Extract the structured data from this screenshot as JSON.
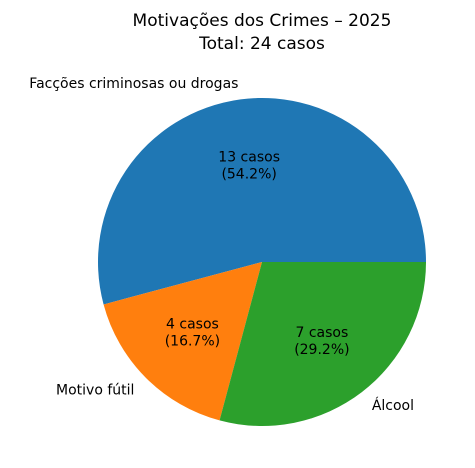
{
  "chart_data": {
    "type": "pie",
    "title": "Motivações dos Crimes – 2025",
    "subtitle": "Total: 24 casos",
    "slices": [
      {
        "name": "Facções criminosas ou drogas",
        "value": 13,
        "value_label": "13 casos",
        "percent_label": "(54.2%)",
        "color": "#1f77b4"
      },
      {
        "name": "Motivo fútil",
        "value": 4,
        "value_label": "4 casos",
        "percent_label": "(16.7%)",
        "color": "#ff7f0e"
      },
      {
        "name": "Álcool",
        "value": 7,
        "value_label": "7 casos",
        "percent_label": "(29.2%)",
        "color": "#2ca02c"
      }
    ],
    "start_angle_deg": 0,
    "direction": "counterclockwise",
    "legend": "none"
  }
}
